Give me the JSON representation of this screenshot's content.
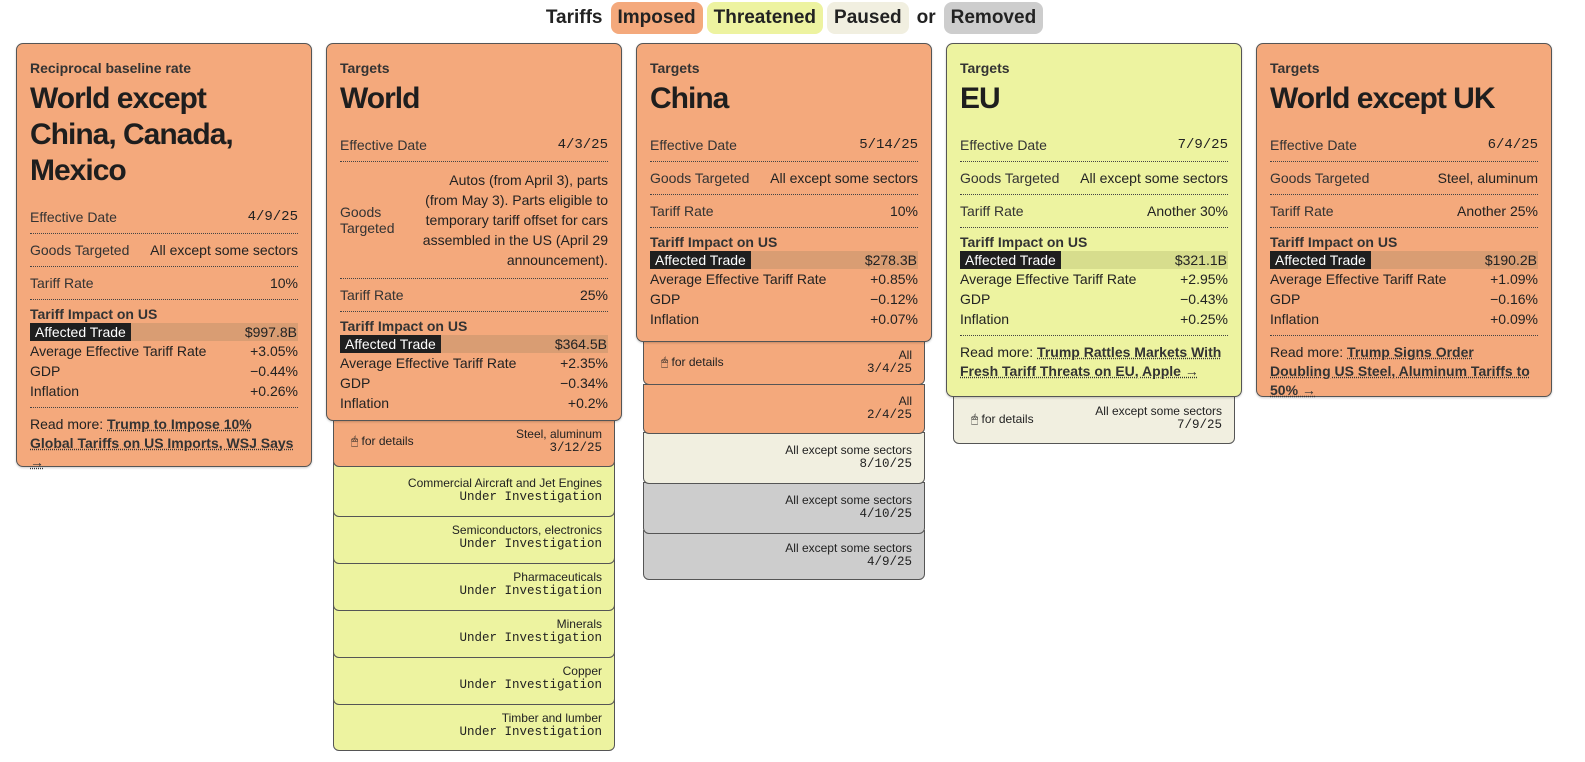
{
  "legend": {
    "prefix": "Tariffs",
    "imposed": "Imposed",
    "threatened": "Threatened",
    "paused": "Paused",
    "connector": "or",
    "removed": "Removed"
  },
  "colors": {
    "imposed": "#f4a97c",
    "threatened": "#edf3a0",
    "paused": "#f1efe0",
    "removed": "#cdcdcd"
  },
  "labels": {
    "effective_date": "Effective Date",
    "goods_targeted": "Goods Targeted",
    "goods_targeted_l1": "Goods",
    "goods_targeted_l2": "Targeted",
    "tariff_rate": "Tariff Rate",
    "impact_heading": "Tariff Impact on US",
    "affected_trade": "Affected Trade",
    "avg_rate": "Average Effective Tariff Rate",
    "gdp": "GDP",
    "inflation": "Inflation",
    "read_more": "Read more:",
    "for_details": "for details"
  },
  "cards": [
    {
      "kicker": "Reciprocal baseline rate",
      "title": "World except China, Canada, Mexico",
      "effective_date": "4/9/25",
      "goods_targeted": "All except some sectors",
      "tariff_rate": "10%",
      "affected_trade": "$997.8B",
      "avg_rate": "+3.05%",
      "gdp": "−0.44%",
      "inflation": "+0.26%",
      "read_more_link": "Trump to Impose 10% Global Tariffs on US Imports, WSJ Says →"
    },
    {
      "kicker": "Targets",
      "title": "World",
      "effective_date": "4/3/25",
      "goods_targeted": "Autos (from April 3), parts (from May 3). Parts eligible to temporary tariff offset for cars assembled in the US (April 29 announcement).",
      "tariff_rate": "25%",
      "affected_trade": "$364.5B",
      "avg_rate": "+2.35%",
      "gdp": "−0.34%",
      "inflation": "+0.2%"
    },
    {
      "kicker": "Targets",
      "title": "China",
      "effective_date": "5/14/25",
      "goods_targeted": "All except some sectors",
      "tariff_rate": "10%",
      "affected_trade": "$278.3B",
      "avg_rate": "+0.85%",
      "gdp": "−0.12%",
      "inflation": "+0.07%"
    },
    {
      "kicker": "Targets",
      "title": "EU",
      "effective_date": "7/9/25",
      "goods_targeted": "All except some sectors",
      "tariff_rate": "Another 30%",
      "affected_trade": "$321.1B",
      "avg_rate": "+2.95%",
      "gdp": "−0.43%",
      "inflation": "+0.25%",
      "read_more_link": "Trump Rattles Markets With Fresh Tariff Threats on EU, Apple →"
    },
    {
      "kicker": "Targets",
      "title": "World except UK",
      "effective_date": "6/4/25",
      "goods_targeted": "Steel, aluminum",
      "tariff_rate": "Another 25%",
      "affected_trade": "$190.2B",
      "avg_rate": "+1.09%",
      "gdp": "−0.16%",
      "inflation": "+0.09%",
      "read_more_link": "Trump Signs Order Doubling US Steel, Aluminum Tariffs to 50% →"
    }
  ],
  "world_stack": [
    {
      "status": "imposed",
      "goods": "Steel, aluminum",
      "date": "3/12/25",
      "details": true
    },
    {
      "status": "threatened",
      "goods": "Commercial Aircraft and Jet Engines",
      "date": "Under Investigation"
    },
    {
      "status": "threatened",
      "goods": "Semiconductors, electronics",
      "date": "Under Investigation"
    },
    {
      "status": "threatened",
      "goods": "Pharmaceuticals",
      "date": "Under Investigation"
    },
    {
      "status": "threatened",
      "goods": "Minerals",
      "date": "Under Investigation"
    },
    {
      "status": "threatened",
      "goods": "Copper",
      "date": "Under Investigation"
    },
    {
      "status": "threatened",
      "goods": "Timber and lumber",
      "date": "Under Investigation"
    }
  ],
  "china_stack": [
    {
      "status": "imposed",
      "goods": "All",
      "date": "3/4/25",
      "details": true
    },
    {
      "status": "imposed",
      "goods": "All",
      "date": "2/4/25"
    },
    {
      "status": "paused",
      "goods": "All except some sectors",
      "date": "8/10/25"
    },
    {
      "status": "removed",
      "goods": "All except some sectors",
      "date": "4/10/25"
    },
    {
      "status": "removed",
      "goods": "All except some sectors",
      "date": "4/9/25"
    }
  ],
  "eu_stack": [
    {
      "status": "paused",
      "goods": "All except some sectors",
      "date": "7/9/25",
      "details": true
    }
  ]
}
